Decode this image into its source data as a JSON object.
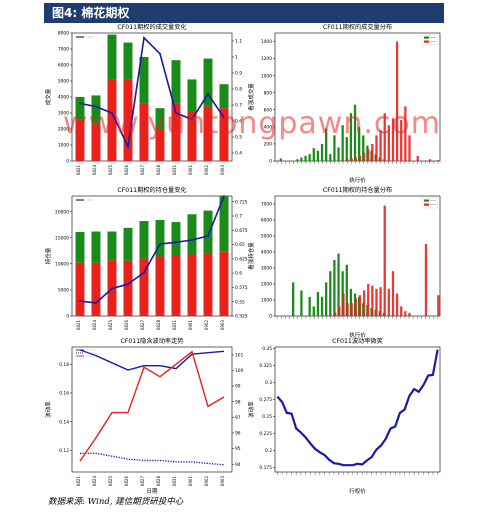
{
  "header": {
    "title": "图4: 棉花期权"
  },
  "source": "数据来源: Wind, 建信期货研投中心",
  "watermark": "www.yuntongpawn.com",
  "colors": {
    "green": "#1a8a1a",
    "red": "#e8211d",
    "blue": "#1a1aa8",
    "header_bg": "#1f3e6f"
  },
  "chart_data": [
    {
      "id": "volume",
      "type": "bar",
      "title": "CF011期权的成交量变化",
      "ylabel": "成交量",
      "stacked": true,
      "categories": [
        "0821",
        "0824",
        "0825",
        "0826",
        "0827",
        "0828",
        "0831",
        "0901",
        "0902",
        "0903"
      ],
      "series": [
        {
          "kind": "bar",
          "color": "#e8211d",
          "values": [
            2600,
            2300,
            5100,
            5100,
            3600,
            2000,
            3600,
            3100,
            3400,
            3300
          ]
        },
        {
          "kind": "bar",
          "color": "#1a8a1a",
          "values": [
            1400,
            1800,
            2800,
            2300,
            2900,
            1300,
            2700,
            2000,
            3000,
            1500
          ]
        },
        {
          "kind": "line",
          "axis": "right",
          "color": "#1a1aa8",
          "values": [
            0.71,
            0.69,
            0.65,
            0.44,
            1.12,
            1.02,
            0.65,
            0.61,
            0.77,
            0.62
          ]
        }
      ],
      "ylim": [
        0,
        8000
      ],
      "yticks": [
        0,
        1000,
        2000,
        3000,
        4000,
        5000,
        6000,
        7000,
        8000
      ],
      "y2lim": [
        0.35,
        1.15
      ],
      "y2ticks": [
        0.4,
        0.5,
        0.6,
        0.7,
        0.8,
        0.9,
        1.0,
        1.1
      ]
    },
    {
      "id": "volume_dist",
      "type": "bar",
      "title": "CF011期权的成交量分布",
      "ylabel": "看涨成交量",
      "xlabel": "执行价",
      "ylim": [
        0,
        1500
      ],
      "yticks": [
        0,
        200,
        400,
        600,
        800,
        1000,
        1200,
        1400
      ],
      "strike_count": 40,
      "series": [
        {
          "name": "call",
          "color": "#1a8a1a",
          "values": [
            0,
            30,
            0,
            0,
            0,
            20,
            40,
            60,
            80,
            150,
            120,
            200,
            380,
            80,
            300,
            160,
            420,
            280,
            560,
            660,
            400,
            300,
            180,
            120,
            80,
            40,
            20,
            0,
            0,
            0,
            0,
            0,
            0,
            0,
            0,
            0,
            0,
            0,
            0,
            0
          ]
        },
        {
          "name": "put",
          "color": "#e8211d",
          "values": [
            0,
            0,
            0,
            0,
            0,
            0,
            0,
            0,
            0,
            0,
            0,
            0,
            0,
            0,
            0,
            0,
            0,
            20,
            30,
            40,
            60,
            100,
            140,
            200,
            300,
            360,
            560,
            420,
            500,
            1400,
            480,
            640,
            300,
            0,
            60,
            0,
            0,
            20,
            0,
            10
          ]
        }
      ]
    },
    {
      "id": "oi",
      "type": "bar",
      "title": "CF011期权的持仓量变化",
      "ylabel": "持仓量",
      "stacked": true,
      "categories": [
        "0821",
        "0824",
        "0825",
        "0826",
        "0827",
        "0828",
        "0831",
        "0901",
        "0902",
        "0903"
      ],
      "series": [
        {
          "kind": "bar",
          "color": "#e8211d",
          "values": [
            10200,
            10200,
            10700,
            10600,
            11000,
            11400,
            11600,
            11800,
            12000,
            12400
          ]
        },
        {
          "kind": "bar",
          "color": "#1a8a1a",
          "values": [
            5900,
            6000,
            5500,
            6300,
            7200,
            7000,
            6400,
            7700,
            8200,
            10600
          ]
        },
        {
          "kind": "line",
          "axis": "right",
          "color": "#1a1aa8",
          "values": [
            0.551,
            0.548,
            0.573,
            0.581,
            0.601,
            0.651,
            0.654,
            0.658,
            0.665,
            0.735
          ]
        }
      ],
      "ylim": [
        0,
        23000
      ],
      "yticks": [
        0,
        5000,
        10000,
        15000,
        20000
      ],
      "y2lim": [
        0.525,
        0.735
      ],
      "y2ticks": [
        0.525,
        0.55,
        0.575,
        0.6,
        0.625,
        0.65,
        0.675,
        0.7,
        0.725
      ]
    },
    {
      "id": "oi_dist",
      "type": "bar",
      "title": "CF011期权的持仓量分布",
      "ylabel": "看涨持仓量",
      "xlabel": "执行价",
      "ylim": [
        0,
        7500
      ],
      "yticks": [
        0,
        1000,
        2000,
        3000,
        4000,
        5000,
        6000,
        7000
      ],
      "strike_count": 40,
      "series": [
        {
          "name": "call",
          "color": "#1a8a1a",
          "values": [
            0,
            0,
            0,
            0,
            2100,
            0,
            1600,
            0,
            1200,
            600,
            1500,
            1200,
            2100,
            2800,
            3500,
            3900,
            2800,
            3200,
            1700,
            1400,
            1200,
            800,
            700,
            500,
            400,
            300,
            200,
            0,
            0,
            0,
            0,
            0,
            0,
            0,
            0,
            0,
            0,
            0,
            0,
            0
          ]
        },
        {
          "name": "put",
          "color": "#e8211d",
          "values": [
            0,
            0,
            0,
            0,
            0,
            0,
            0,
            0,
            0,
            0,
            0,
            0,
            0,
            0,
            200,
            600,
            1400,
            800,
            800,
            1100,
            1300,
            1600,
            2000,
            1900,
            1700,
            1800,
            6900,
            1700,
            2800,
            1400,
            600,
            300,
            200,
            0,
            0,
            0,
            4500,
            0,
            0,
            1300
          ]
        }
      ]
    },
    {
      "id": "iv",
      "type": "line",
      "title": "CF011隐含波动率走势",
      "ylabel": "波动率",
      "xlabel": "日期",
      "categories": [
        "0821",
        "0824",
        "0825",
        "0826",
        "0827",
        "0828",
        "0831",
        "0901",
        "0902",
        "0903"
      ],
      "ylim": [
        0.105,
        0.192
      ],
      "yticks": [
        0.12,
        0.14,
        0.16,
        0.18
      ],
      "y2lim": [
        93.5,
        101.5
      ],
      "y2ticks": [
        94,
        95,
        96,
        97,
        98,
        99,
        100,
        101
      ],
      "series": [
        {
          "color": "#1a1aa8",
          "style": "solid",
          "values": [
            0.19,
            0.186,
            0.181,
            0.176,
            0.179,
            0.179,
            0.177,
            0.187,
            0.188,
            0.189
          ]
        },
        {
          "color": "#1a1aa8",
          "style": "dotted",
          "values": [
            0.118,
            0.118,
            0.116,
            0.114,
            0.113,
            0.113,
            0.112,
            0.112,
            0.111,
            0.11
          ]
        },
        {
          "color": "#e8211d",
          "style": "solid",
          "axis": "right",
          "values": [
            94.2,
            95.7,
            97.3,
            97.3,
            100.2,
            99.6,
            100.4,
            101.2,
            97.7,
            98.3
          ]
        }
      ]
    },
    {
      "id": "smile",
      "type": "line",
      "title": "CF011波动率微笑",
      "ylabel": "波动率",
      "xlabel": "行权价",
      "ylim": [
        0.168,
        0.352
      ],
      "yticks": [
        0.175,
        0.2,
        0.225,
        0.25,
        0.275,
        0.3,
        0.325,
        0.35
      ],
      "series": [
        {
          "color": "#1a1aa8",
          "values": [
            0.279,
            0.271,
            0.255,
            0.254,
            0.232,
            0.226,
            0.219,
            0.21,
            0.202,
            0.197,
            0.193,
            0.186,
            0.181,
            0.18,
            0.178,
            0.178,
            0.178,
            0.18,
            0.179,
            0.185,
            0.19,
            0.201,
            0.207,
            0.217,
            0.232,
            0.235,
            0.255,
            0.26,
            0.28,
            0.29,
            0.286,
            0.296,
            0.31,
            0.311,
            0.348
          ]
        }
      ]
    }
  ]
}
